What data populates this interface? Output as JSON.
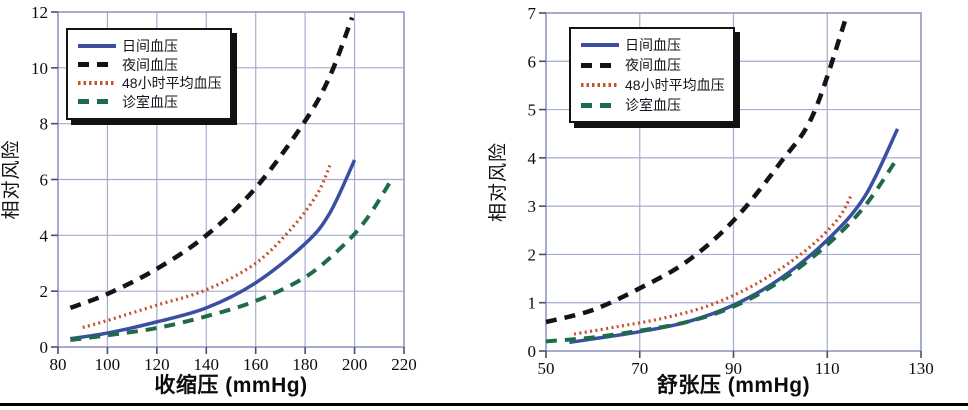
{
  "figure": {
    "background": "#ffffff",
    "divider_color": "#000000",
    "grid_color": "#a6accf",
    "frame_color": "#959cc4",
    "tick_color": "#4c4c6e",
    "text_color": "#0c0c0c"
  },
  "chart_data": [
    {
      "type": "line",
      "title": "",
      "xlabel": "收缩压 (mmHg)",
      "ylabel": "相对风险",
      "xlim": [
        80,
        220
      ],
      "ylim": [
        0,
        12
      ],
      "xticks": [
        80,
        100,
        120,
        140,
        160,
        180,
        200,
        220
      ],
      "yticks": [
        0,
        2,
        4,
        6,
        8,
        10,
        12
      ],
      "grid": true,
      "legend_position": "upper-left",
      "series": [
        {
          "id": "daytime-bp",
          "name": "日间血压",
          "color": "#3a4fa1",
          "dash": "solid",
          "width": 3.5,
          "points": [
            [
              85,
              0.3
            ],
            [
              100,
              0.5
            ],
            [
              120,
              0.9
            ],
            [
              140,
              1.4
            ],
            [
              160,
              2.3
            ],
            [
              180,
              3.7
            ],
            [
              190,
              4.8
            ],
            [
              200,
              6.7
            ]
          ]
        },
        {
          "id": "night-bp",
          "name": "夜间血压",
          "color": "#141414",
          "dash": "dashed",
          "width": 4.5,
          "points": [
            [
              85,
              1.4
            ],
            [
              100,
              1.9
            ],
            [
              120,
              2.8
            ],
            [
              140,
              4.0
            ],
            [
              160,
              5.7
            ],
            [
              180,
              8.1
            ],
            [
              190,
              9.7
            ],
            [
              199,
              11.8
            ]
          ]
        },
        {
          "id": "avg48h-bp",
          "name": "48小时平均血压",
          "color": "#c8502a",
          "dash": "dotted",
          "width": 3.2,
          "points": [
            [
              90,
              0.7
            ],
            [
              100,
              0.95
            ],
            [
              120,
              1.5
            ],
            [
              140,
              2.05
            ],
            [
              160,
              3.0
            ],
            [
              175,
              4.3
            ],
            [
              185,
              5.5
            ],
            [
              190,
              6.5
            ]
          ]
        },
        {
          "id": "office-bp",
          "name": "诊室血压",
          "color": "#1d6b48",
          "dash": "dashed",
          "width": 4,
          "points": [
            [
              85,
              0.25
            ],
            [
              100,
              0.42
            ],
            [
              120,
              0.68
            ],
            [
              140,
              1.1
            ],
            [
              160,
              1.65
            ],
            [
              180,
              2.5
            ],
            [
              195,
              3.6
            ],
            [
              205,
              4.6
            ],
            [
              215,
              6.0
            ]
          ]
        }
      ]
    },
    {
      "type": "line",
      "title": "",
      "xlabel": "舒张压 (mmHg)",
      "ylabel": "相对风险",
      "xlim": [
        50,
        130
      ],
      "ylim": [
        0,
        7
      ],
      "xticks": [
        50,
        70,
        90,
        110,
        130
      ],
      "yticks": [
        0,
        1,
        2,
        3,
        4,
        5,
        6,
        7
      ],
      "grid": true,
      "legend_position": "upper-left",
      "series": [
        {
          "id": "daytime-bp",
          "name": "日间血压",
          "color": "#3a4fa1",
          "dash": "solid",
          "width": 3.5,
          "points": [
            [
              55,
              0.18
            ],
            [
              60,
              0.25
            ],
            [
              70,
              0.4
            ],
            [
              80,
              0.6
            ],
            [
              90,
              0.95
            ],
            [
              100,
              1.5
            ],
            [
              110,
              2.3
            ],
            [
              118,
              3.2
            ],
            [
              125,
              4.6
            ]
          ]
        },
        {
          "id": "night-bp",
          "name": "夜间血压",
          "color": "#141414",
          "dash": "dashed",
          "width": 4.5,
          "points": [
            [
              50,
              0.6
            ],
            [
              60,
              0.85
            ],
            [
              70,
              1.3
            ],
            [
              80,
              1.85
            ],
            [
              90,
              2.7
            ],
            [
              100,
              3.9
            ],
            [
              107,
              4.9
            ],
            [
              114,
              6.9
            ]
          ]
        },
        {
          "id": "avg48h-bp",
          "name": "48小时平均血压",
          "color": "#c8502a",
          "dash": "dotted",
          "width": 3.2,
          "points": [
            [
              56,
              0.35
            ],
            [
              65,
              0.5
            ],
            [
              75,
              0.68
            ],
            [
              85,
              0.95
            ],
            [
              95,
              1.4
            ],
            [
              105,
              2.05
            ],
            [
              112,
              2.7
            ],
            [
              115,
              3.2
            ]
          ]
        },
        {
          "id": "office-bp",
          "name": "诊室血压",
          "color": "#1d6b48",
          "dash": "dashed",
          "width": 4,
          "points": [
            [
              50,
              0.2
            ],
            [
              60,
              0.28
            ],
            [
              70,
              0.42
            ],
            [
              80,
              0.6
            ],
            [
              90,
              0.92
            ],
            [
              100,
              1.45
            ],
            [
              110,
              2.2
            ],
            [
              118,
              3.0
            ],
            [
              125,
              4.0
            ]
          ]
        }
      ]
    }
  ]
}
